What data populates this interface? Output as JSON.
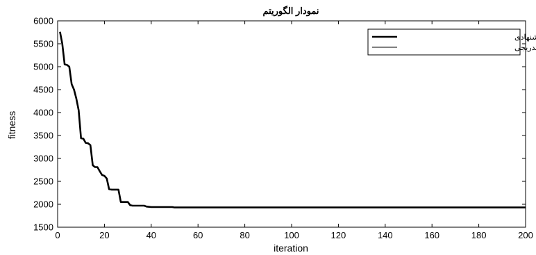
{
  "chart_data": {
    "type": "line",
    "title": "نمودار الگوریتم",
    "xlabel": "iteration",
    "ylabel": "fitness",
    "xlim": [
      0,
      200
    ],
    "ylim": [
      1500,
      6000
    ],
    "xticks": [
      0,
      20,
      40,
      60,
      80,
      100,
      120,
      140,
      160,
      180,
      200
    ],
    "yticks": [
      1500,
      2000,
      2500,
      3000,
      3500,
      4000,
      4500,
      5000,
      5500,
      6000
    ],
    "grid": false,
    "legend_position": "top-right",
    "series": [
      {
        "name": "الگوریتم ژنتیک پیشنهادی",
        "color": "#000000",
        "points": [
          [
            1,
            5760
          ],
          [
            2,
            5500
          ],
          [
            3,
            5050
          ],
          [
            4,
            5040
          ],
          [
            5,
            5000
          ],
          [
            6,
            4620
          ],
          [
            7,
            4500
          ],
          [
            8,
            4300
          ],
          [
            9,
            4050
          ],
          [
            10,
            3440
          ],
          [
            11,
            3430
          ],
          [
            12,
            3340
          ],
          [
            13,
            3330
          ],
          [
            14,
            3290
          ],
          [
            15,
            2850
          ],
          [
            16,
            2810
          ],
          [
            17,
            2810
          ],
          [
            18,
            2720
          ],
          [
            19,
            2640
          ],
          [
            20,
            2620
          ],
          [
            21,
            2560
          ],
          [
            22,
            2330
          ],
          [
            23,
            2320
          ],
          [
            24,
            2320
          ],
          [
            25,
            2320
          ],
          [
            26,
            2320
          ],
          [
            27,
            2050
          ],
          [
            28,
            2050
          ],
          [
            29,
            2050
          ],
          [
            30,
            2050
          ],
          [
            31,
            1980
          ],
          [
            32,
            1970
          ],
          [
            33,
            1970
          ],
          [
            34,
            1970
          ],
          [
            35,
            1970
          ],
          [
            36,
            1970
          ],
          [
            37,
            1970
          ],
          [
            38,
            1950
          ],
          [
            40,
            1940
          ],
          [
            45,
            1940
          ],
          [
            49,
            1940
          ],
          [
            50,
            1930
          ],
          [
            60,
            1930
          ],
          [
            100,
            1930
          ],
          [
            150,
            1930
          ],
          [
            200,
            1930
          ]
        ]
      },
      {
        "name": "الگوریتم انجماد تدریجی",
        "color": "#808080",
        "points": [
          [
            50,
            1930
          ],
          [
            100,
            1930
          ],
          [
            150,
            1930
          ],
          [
            200,
            1930
          ]
        ]
      }
    ]
  }
}
